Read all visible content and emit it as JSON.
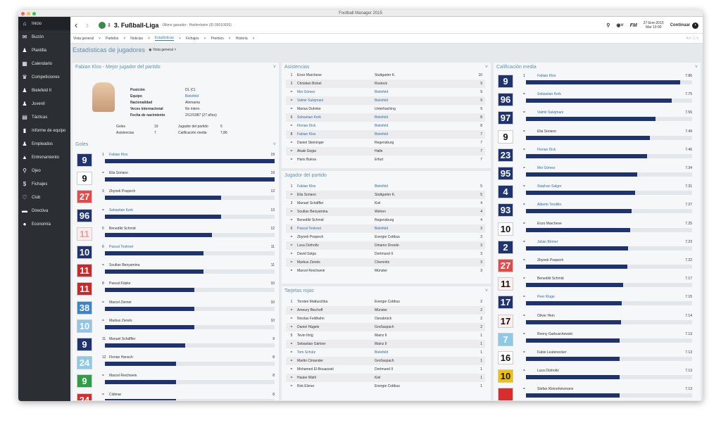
{
  "window_title": "Football Manager 2015",
  "sidebar": [
    {
      "label": "Inicio",
      "icon": "home-icon",
      "g": "⌂"
    },
    {
      "label": "Buzón",
      "icon": "inbox-icon",
      "g": "✉"
    },
    {
      "label": "Plantilla",
      "icon": "squad-icon",
      "g": "♟"
    },
    {
      "label": "Calendario",
      "icon": "calendar-icon",
      "g": "▦"
    },
    {
      "label": "Competiciones",
      "icon": "trophy-icon",
      "g": "♛"
    },
    {
      "label": "Bielefeld II",
      "icon": "team-icon",
      "g": "♟"
    },
    {
      "label": "Juvenil",
      "icon": "team-icon",
      "g": "♟"
    },
    {
      "label": "Tácticas",
      "icon": "tactics-icon",
      "g": "▤"
    },
    {
      "label": "Informe de equipo",
      "icon": "report-icon",
      "g": "▮"
    },
    {
      "label": "Empleados",
      "icon": "staff-icon",
      "g": "♟"
    },
    {
      "label": "Entrenamiento",
      "icon": "training-icon",
      "g": "▲"
    },
    {
      "label": "Ojeo",
      "icon": "search-icon",
      "g": "⚲"
    },
    {
      "label": "Fichajes",
      "icon": "transfer-icon",
      "g": "$"
    },
    {
      "label": "Club",
      "icon": "club-icon",
      "g": "♡"
    },
    {
      "label": "Directiva",
      "icon": "board-icon",
      "g": "▬"
    },
    {
      "label": "Economía",
      "icon": "finance-icon",
      "g": "●"
    }
  ],
  "header": {
    "league": "3. Fußball-Liga",
    "sub": "Último ganador - Heidenheim (ID:35010926)",
    "fm": "FM",
    "date": "27-Ene-2015",
    "day": "Mar 10:00",
    "continue": "Continuar"
  },
  "subnav": [
    "Vista general",
    "Partidos",
    "Noticias",
    "Estadísticas",
    "Fichajes",
    "Premios",
    "Historia"
  ],
  "page_title": "Estadísticas de jugadores",
  "view_label": "Vista general",
  "best": {
    "title": "Fabian Klos - Mejor jugador del partido",
    "rows": [
      [
        "Posición",
        "DL (C)"
      ],
      [
        "Equipo",
        "Bielefeld"
      ],
      [
        "Nacionalidad",
        "Alemania"
      ],
      [
        "Veces internacional",
        "No intern."
      ],
      [
        "Fecha de nacimiento",
        "2/12/1987 (27 años)"
      ]
    ],
    "stats": [
      [
        "Goles",
        "19",
        "Jugador del partido",
        "5"
      ],
      [
        "Asistencias",
        "7",
        "Calificación media",
        "7,86"
      ]
    ]
  },
  "goles": {
    "title": "Goles",
    "rows": [
      {
        "pos": "1",
        "kit": "9",
        "kc": "#1f3371",
        "kb": "#fff",
        "name": "Fabian Klos",
        "lnk": true,
        "v": "19"
      },
      {
        "pos": "=",
        "kit": "9",
        "kc": "#fff",
        "kb": "#111",
        "name": "Elia Soriano",
        "v": "19"
      },
      {
        "pos": "3",
        "kit": "27",
        "kc": "#e34b4b",
        "kb": "#fff",
        "name": "Zbynek Pospech",
        "v": "13"
      },
      {
        "pos": "=",
        "kit": "96",
        "kc": "#1f3371",
        "kb": "#fff",
        "name": "Sebastian Kerk",
        "lnk": true,
        "v": "13"
      },
      {
        "pos": "5",
        "kit": "11",
        "kc": "#fdeeee",
        "kb": "#ccc",
        "name": "Benedikt Schmid",
        "v": "12"
      },
      {
        "pos": "6",
        "kit": "10",
        "kc": "#1f3371",
        "kb": "#fff",
        "name": "Pascal Testroet",
        "lnk": true,
        "v": "11"
      },
      {
        "pos": "=",
        "kit": "11",
        "kc": "#c62a2a",
        "kb": "#fff",
        "name": "Soufian Benyamina",
        "v": "11"
      },
      {
        "pos": "8",
        "kit": "11",
        "kc": "#c62a2a",
        "kb": "#fff",
        "name": "Pascal Köpke",
        "v": "10"
      },
      {
        "pos": "=",
        "kit": "38",
        "kc": "#3a85c8",
        "kb": "#fff",
        "name": "Marcel Ziemer",
        "v": "10"
      },
      {
        "pos": "=",
        "kit": "10",
        "kc": "#90c4e8",
        "kb": "#fff",
        "name": "Markus Zierels",
        "v": "10"
      },
      {
        "pos": "11",
        "kit": "9",
        "kc": "#1f3371",
        "kb": "#fff",
        "name": "Manuel Schäffler",
        "v": "9"
      },
      {
        "pos": "12",
        "kit": "24",
        "kc": "#8ccbe8",
        "kb": "#fff",
        "name": "Florian Hansch",
        "v": "8"
      },
      {
        "pos": "=",
        "kit": "9",
        "kc": "#2e9e46",
        "kb": "#fff",
        "name": "Marcel Reichwein",
        "v": "8"
      },
      {
        "pos": "=",
        "kit": "24",
        "kc": "#d72d2d",
        "kb": "#fff",
        "name": "Cidimar",
        "v": "8"
      }
    ]
  },
  "asist": {
    "title": "Asistencias",
    "rows": [
      [
        "1",
        "Enzo Marchese",
        "Stuttgarter K.",
        "10"
      ],
      [
        "2",
        "Christian Bickel",
        "Rostock",
        "9"
      ],
      [
        "=",
        "Moi Gómez",
        "Bielefeld",
        "9"
      ],
      [
        "=",
        "Valmir Sulejmani",
        "Bielefeld",
        "9"
      ],
      [
        "=",
        "Marius Duhnke",
        "Unterhaching",
        "9"
      ],
      [
        "6",
        "Sebastian Kerk",
        "Bielefeld",
        "8"
      ],
      [
        "=",
        "Florian Dick",
        "Bielefeld",
        "8"
      ],
      [
        "8",
        "Fabian Klos",
        "Bielefeld",
        "7"
      ],
      [
        "=",
        "Daniel Steininger",
        "Regensburg",
        "7"
      ],
      [
        "=",
        "Akaki Gogia",
        "Halle",
        "7"
      ],
      [
        "=",
        "Haris Bukva",
        "Erfurt",
        "7"
      ]
    ]
  },
  "jug": {
    "title": "Jugador del partido",
    "rows": [
      [
        "1",
        "Fabian Klos",
        "Bielefeld",
        "5"
      ],
      [
        "=",
        "Elia Soriano",
        "Stuttgarter K.",
        "5"
      ],
      [
        "3",
        "Manuel Schäffler",
        "Kiel",
        "4"
      ],
      [
        "=",
        "Soufian Benyamina",
        "Wehen",
        "4"
      ],
      [
        "=",
        "Benedikt Schmid",
        "Regensburg",
        "4"
      ],
      [
        "6",
        "Pascal Testroet",
        "Bielefeld",
        "3"
      ],
      [
        "=",
        "Zbynek Pospech",
        "Energie Cottbus",
        "3"
      ],
      [
        "=",
        "Luca Dürholtz",
        "Dinamo Dresde",
        "3"
      ],
      [
        "=",
        "David Solga",
        "Dortmund II",
        "3"
      ],
      [
        "=",
        "Markus Zierels",
        "Chemnitz",
        "3"
      ],
      [
        "=",
        "Marcel Reichwein",
        "Münster",
        "3"
      ]
    ]
  },
  "rojas": {
    "title": "Tarjetas rojas",
    "rows": [
      [
        "1",
        "Torsten Mattuschka",
        "Energie Cottbus",
        "2"
      ],
      [
        "=",
        "Ameury Bischoff",
        "Münster",
        "2"
      ],
      [
        "=",
        "Nicolas Feldhahn",
        "Osnabrück",
        "2"
      ],
      [
        "=",
        "Daniel Hägele",
        "Großaspach",
        "2"
      ],
      [
        "5",
        "Tevin Ihrig",
        "Mainz II",
        "1"
      ],
      [
        "=",
        "Sebastian Gärtner",
        "Mainz II",
        "1"
      ],
      [
        "=",
        "Tom Schütz",
        "Bielefeld",
        "1"
      ],
      [
        "=",
        "Martin Cimander",
        "Großaspach",
        "1"
      ],
      [
        "=",
        "Mohamed El-Bouazzati",
        "Dortmund II",
        "1"
      ],
      [
        "=",
        "Hauke Wahl",
        "Kiel",
        "1"
      ],
      [
        "=",
        "Rok Elsner",
        "Energie Cottbus",
        "1"
      ]
    ]
  },
  "cal": {
    "title": "Calificación media",
    "rows": [
      {
        "pos": "1",
        "kit": "9",
        "kc": "#1f3371",
        "name": "Fabian Klos",
        "lnk": true,
        "v": "7.86"
      },
      {
        "pos": "=",
        "kit": "96",
        "kc": "#1f3371",
        "name": "Sebastian Kerk",
        "lnk": true,
        "v": "7.75"
      },
      {
        "pos": "=",
        "kit": "97",
        "kc": "#1f3371",
        "name": "Valmir Sulejmani",
        "lnk": true,
        "v": "7.56"
      },
      {
        "pos": "=",
        "kit": "9",
        "kc": "#fff",
        "name": "Elia Soriano",
        "v": "7.49"
      },
      {
        "pos": "=",
        "kit": "23",
        "kc": "#1f3371",
        "name": "Florian Dick",
        "lnk": true,
        "v": "7.46"
      },
      {
        "pos": "=",
        "kit": "95",
        "kc": "#1f3371",
        "name": "Moi Gómez",
        "lnk": true,
        "v": "7.34"
      },
      {
        "pos": "=",
        "kit": "4",
        "kc": "#1f3371",
        "name": "Stephan Salger",
        "lnk": true,
        "v": "7.31"
      },
      {
        "pos": "=",
        "kit": "93",
        "kc": "#1f3371",
        "name": "Alberto Tendillo",
        "lnk": true,
        "v": "7.27"
      },
      {
        "pos": "=",
        "kit": "10",
        "kc": "#fff",
        "name": "Enzo Marchese",
        "v": "7.25"
      },
      {
        "pos": "=",
        "kit": "2",
        "kc": "#1f3371",
        "name": "Julian Börner",
        "lnk": true,
        "v": "7.23"
      },
      {
        "pos": "=",
        "kit": "27",
        "kc": "#e34b4b",
        "name": "Zbynek Pospech",
        "v": "7.22"
      },
      {
        "pos": "=",
        "kit": "11",
        "kc": "#fdeeee",
        "name": "Benedikt Schmid",
        "v": "7.17"
      },
      {
        "pos": "=",
        "kit": "17",
        "kc": "#1f3371",
        "name": "Peer Kluge",
        "lnk": true,
        "v": "7.15"
      },
      {
        "pos": "=",
        "kit": "17",
        "kc": "#fdeeee",
        "name": "Oliver Hein",
        "v": "7.14"
      },
      {
        "pos": "=",
        "kit": "7",
        "kc": "#8ccbe8",
        "name": "Ronny Garbuschewski",
        "v": "7.13"
      },
      {
        "pos": "=",
        "kit": "16",
        "kc": "#fff",
        "name": "Fabio Leutenecker",
        "v": "7.13"
      },
      {
        "pos": "=",
        "kit": "10",
        "kc": "#f2c200",
        "name": "Luca Dürholtz",
        "v": "7.13"
      },
      {
        "pos": "=",
        "kit": "",
        "kc": "#d72d2d",
        "name": "Stefan Kleineheismann",
        "v": "7.13"
      }
    ]
  }
}
